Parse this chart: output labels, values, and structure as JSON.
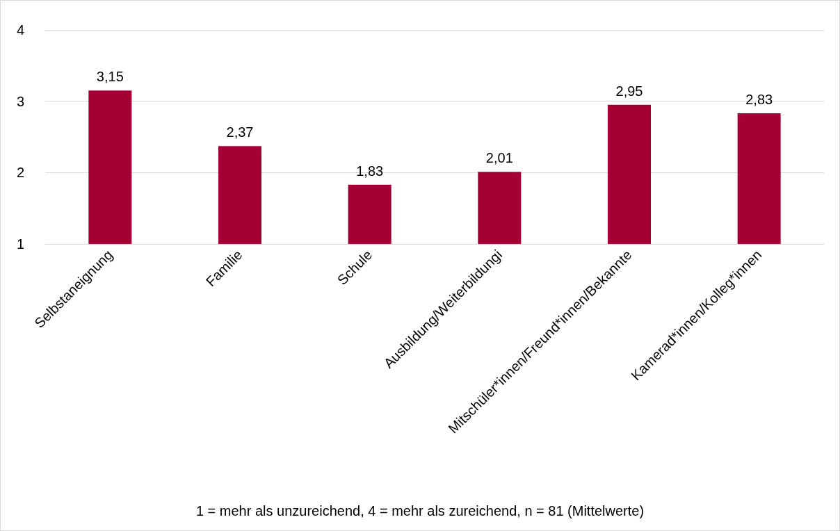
{
  "chart_data": {
    "type": "bar",
    "categories": [
      "Selbstaneignung",
      "Familie",
      "Schule",
      "Ausbildung/Weiterbildungi",
      "Mitschüler*innen/Freund*innen/Bekannte",
      "Kamerad*innen/Kolleg*innen"
    ],
    "values": [
      3.15,
      2.37,
      1.83,
      2.01,
      2.95,
      2.83
    ],
    "value_labels": [
      "3,15",
      "2,37",
      "1,83",
      "2,01",
      "2,95",
      "2,83"
    ],
    "color": "#a50034",
    "ylim": [
      1,
      4
    ],
    "yticks": [
      1,
      2,
      3,
      4
    ],
    "grid": "y",
    "annotations": [
      "1 = mehr als unzureichend, 4 = mehr als zureichend, n = 81 (Mittelwerte)"
    ]
  }
}
